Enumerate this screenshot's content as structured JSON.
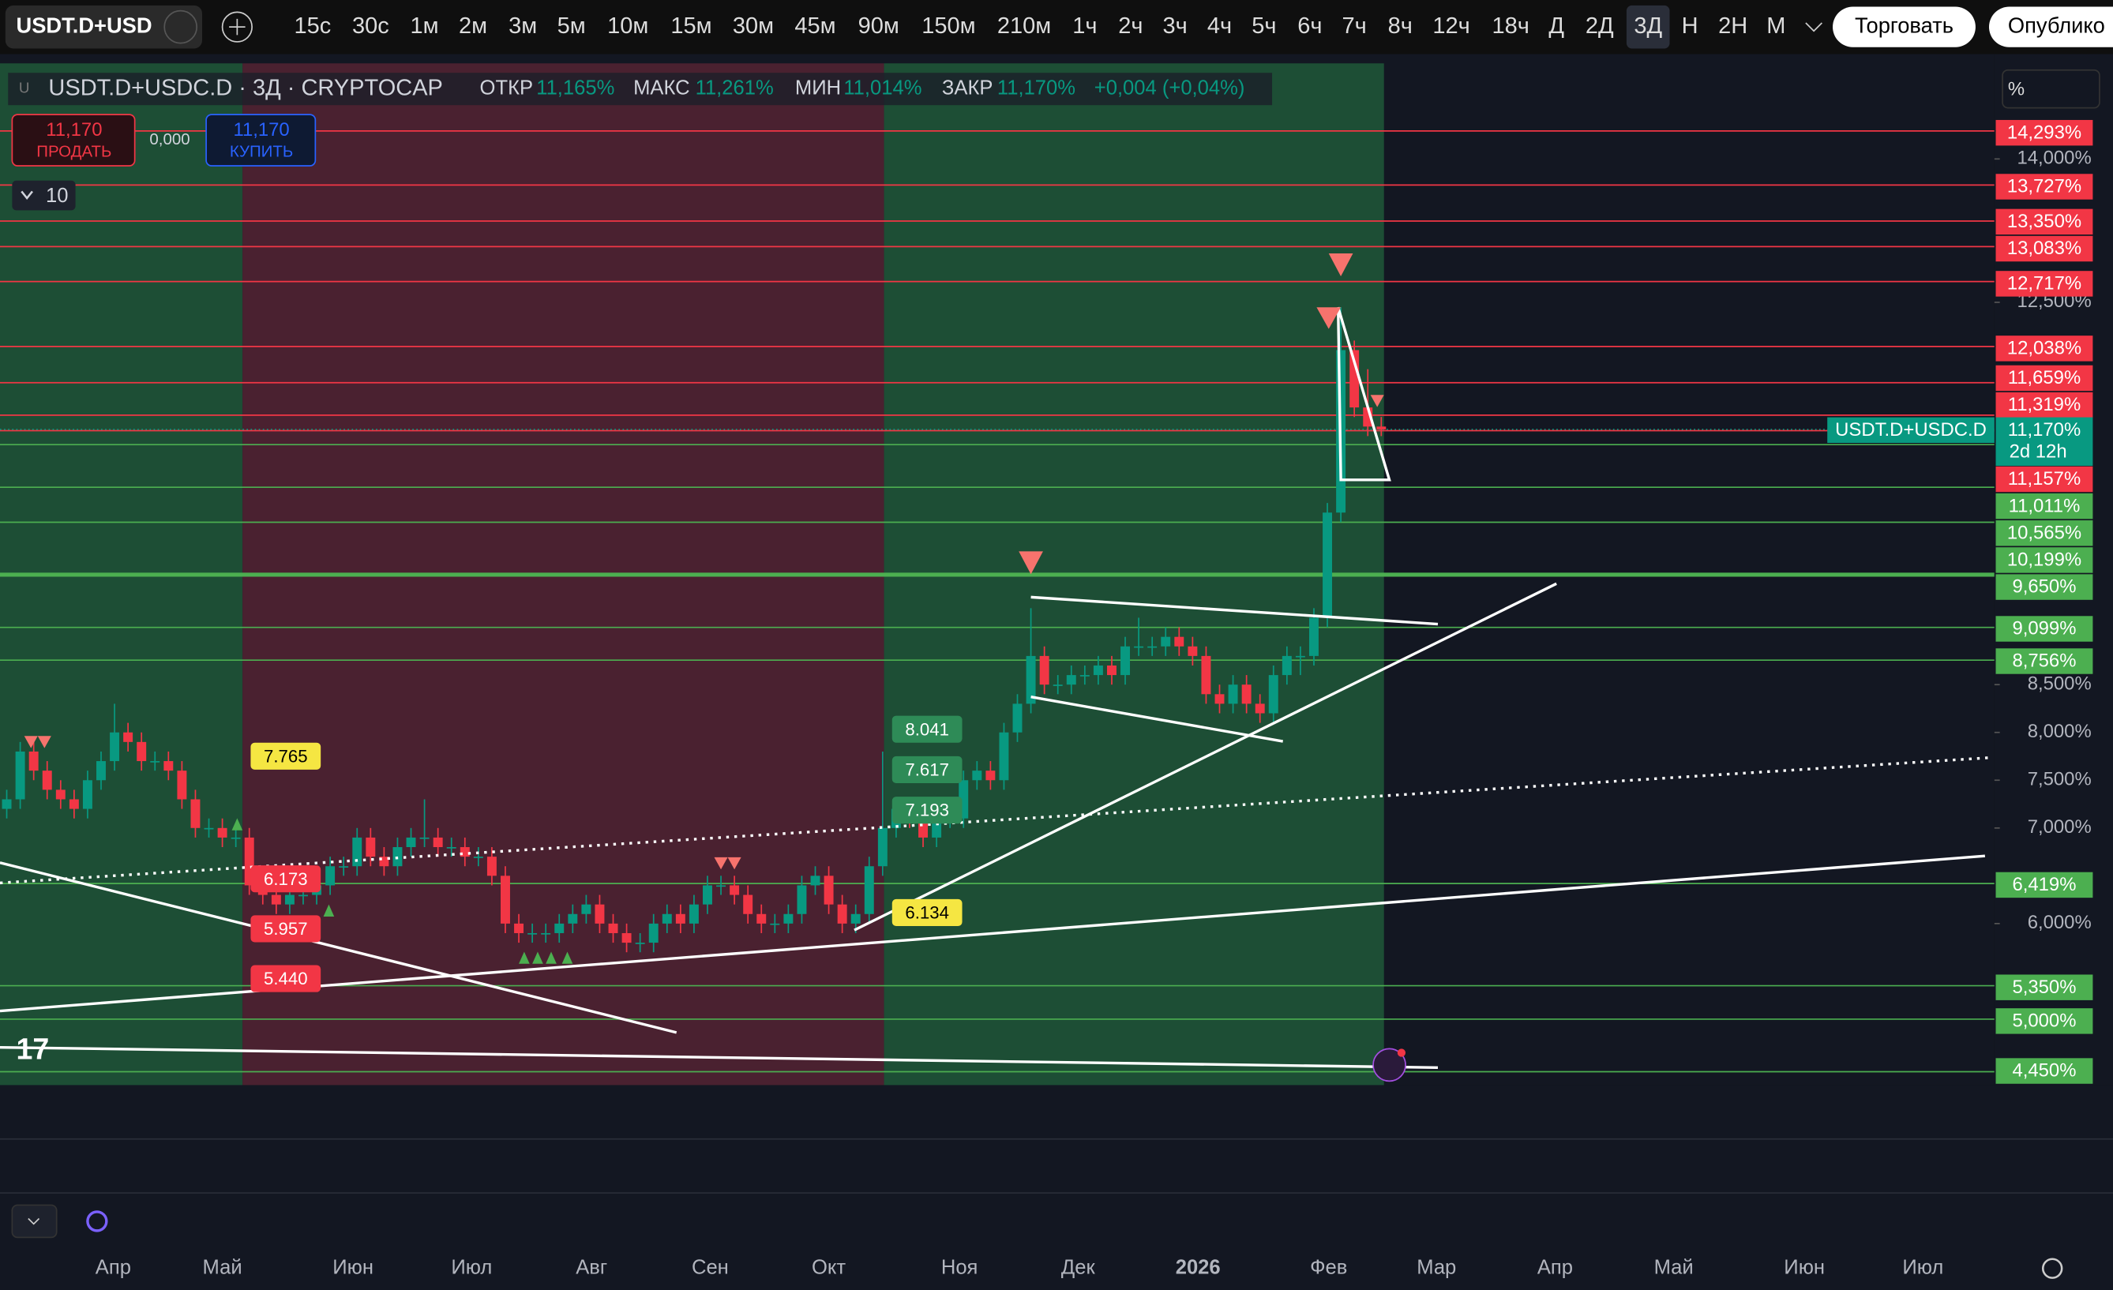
{
  "toolbar": {
    "symbol": "USDT.D+USD",
    "intervals": [
      "15с",
      "30с",
      "1м",
      "2м",
      "3м",
      "5м",
      "10м",
      "15м",
      "30м",
      "45м",
      "90м",
      "150м",
      "210м",
      "1ч",
      "2ч",
      "3ч",
      "4ч",
      "5ч",
      "6ч",
      "7ч",
      "8ч",
      "12ч",
      "18ч",
      "Д",
      "2Д",
      "3Д",
      "Н",
      "2Н",
      "М"
    ],
    "active": "3Д",
    "trade": "Торговать",
    "publish": "Опублико"
  },
  "header": {
    "title": "USDT.D+USDC.D · 3Д · CRYPTOCAP",
    "open_label": "ОТКР",
    "open": "11,165%",
    "high_label": "МАКС",
    "high": "11,261%",
    "low_label": "МИН",
    "low": "11,014%",
    "close_label": "ЗАКР",
    "close": "11,170%",
    "change": "+0,004 (+0,04%)",
    "sell_price": "11,170",
    "sell": "ПРОДАТЬ",
    "spread": "0,000",
    "buy_price": "11,170",
    "buy": "КУПИТЬ",
    "indicators": "10",
    "scale_mode": "%"
  },
  "chart": {
    "ylim": [
      4.31,
      15.0
    ],
    "yticks": [
      {
        "value": 14,
        "label": "14,000%"
      },
      {
        "value": 12.5,
        "label": "12,500%"
      },
      {
        "value": 8.5,
        "label": "8,500%"
      },
      {
        "value": 8,
        "label": "8,000%"
      },
      {
        "value": 7.5,
        "label": "7,500%"
      },
      {
        "value": 7,
        "label": "7,000%"
      },
      {
        "value": 6,
        "label": "6,000%"
      }
    ],
    "levels": [
      {
        "value": 14.293,
        "label": "14,293%",
        "color": "#f23645"
      },
      {
        "value": 13.727,
        "label": "13,727%",
        "color": "#f23645"
      },
      {
        "value": 13.35,
        "label": "13,350%",
        "color": "#f23645"
      },
      {
        "value": 13.083,
        "label": "13,083%",
        "color": "#f23645"
      },
      {
        "value": 12.717,
        "label": "12,717%",
        "color": "#f23645"
      },
      {
        "value": 12.038,
        "label": "12,038%",
        "color": "#f23645"
      },
      {
        "value": 11.659,
        "label": "11,659%",
        "color": "#f23645"
      },
      {
        "value": 11.319,
        "label": "11,319%",
        "color": "#f23645"
      },
      {
        "value": 11.157,
        "label": "11,157%",
        "color": "#f23645"
      },
      {
        "value": 11.011,
        "label": "11,011%",
        "color": "#4caf50"
      },
      {
        "value": 10.565,
        "label": "10,565%",
        "color": "#4caf50"
      },
      {
        "value": 10.199,
        "label": "10,199%",
        "color": "#4caf50"
      },
      {
        "value": 9.65,
        "label": "9,650%",
        "color": "#4caf50"
      },
      {
        "value": 9.099,
        "label": "9,099%",
        "color": "#4caf50"
      },
      {
        "value": 8.756,
        "label": "8,756%",
        "color": "#4caf50"
      },
      {
        "value": 6.419,
        "label": "6,419%",
        "color": "#4caf50"
      },
      {
        "value": 5.35,
        "label": "5,350%",
        "color": "#4caf50"
      },
      {
        "value": 5.0,
        "label": "5,000%",
        "color": "#4caf50"
      },
      {
        "value": 4.45,
        "label": "4,450%",
        "color": "#4caf50"
      }
    ],
    "current": {
      "value": 11.17,
      "label": "11,170%",
      "countdown": "2d 12h",
      "name": "USDT.D+USDC.D",
      "color": "#089981"
    },
    "up_color": "#089981",
    "down_color": "#f23645",
    "candles": [
      [
        7.2,
        7.4,
        7.1,
        7.3
      ],
      [
        7.3,
        7.9,
        7.2,
        7.8
      ],
      [
        7.8,
        7.9,
        7.5,
        7.6
      ],
      [
        7.6,
        7.7,
        7.3,
        7.4
      ],
      [
        7.4,
        7.5,
        7.2,
        7.3
      ],
      [
        7.3,
        7.4,
        7.1,
        7.2
      ],
      [
        7.2,
        7.6,
        7.1,
        7.5
      ],
      [
        7.5,
        7.8,
        7.4,
        7.7
      ],
      [
        7.7,
        8.3,
        7.6,
        8.0
      ],
      [
        8.0,
        8.1,
        7.8,
        7.9
      ],
      [
        7.9,
        8.0,
        7.6,
        7.7
      ],
      [
        7.7,
        7.8,
        7.6,
        7.7
      ],
      [
        7.7,
        7.8,
        7.5,
        7.6
      ],
      [
        7.6,
        7.7,
        7.2,
        7.3
      ],
      [
        7.3,
        7.4,
        6.9,
        7.0
      ],
      [
        7.0,
        7.1,
        6.9,
        7.0
      ],
      [
        7.0,
        7.1,
        6.8,
        6.9
      ],
      [
        6.9,
        7.0,
        6.8,
        6.9
      ],
      [
        6.9,
        7.0,
        6.3,
        6.4
      ],
      [
        6.4,
        6.5,
        6.2,
        6.3
      ],
      [
        6.3,
        6.4,
        6.1,
        6.2
      ],
      [
        6.2,
        6.4,
        6.1,
        6.3
      ],
      [
        6.3,
        6.4,
        6.2,
        6.3
      ],
      [
        6.3,
        6.5,
        6.2,
        6.4
      ],
      [
        6.4,
        6.7,
        6.3,
        6.6
      ],
      [
        6.6,
        6.7,
        6.5,
        6.6
      ],
      [
        6.6,
        7.0,
        6.5,
        6.9
      ],
      [
        6.9,
        7.0,
        6.6,
        6.7
      ],
      [
        6.7,
        6.8,
        6.5,
        6.6
      ],
      [
        6.6,
        6.9,
        6.5,
        6.8
      ],
      [
        6.8,
        7.0,
        6.7,
        6.9
      ],
      [
        6.9,
        7.3,
        6.8,
        6.9
      ],
      [
        6.9,
        7.0,
        6.7,
        6.8
      ],
      [
        6.8,
        6.9,
        6.7,
        6.8
      ],
      [
        6.8,
        6.9,
        6.6,
        6.7
      ],
      [
        6.7,
        6.8,
        6.6,
        6.7
      ],
      [
        6.7,
        6.8,
        6.4,
        6.5
      ],
      [
        6.5,
        6.6,
        5.9,
        6.0
      ],
      [
        6.0,
        6.1,
        5.8,
        5.9
      ],
      [
        5.9,
        6.0,
        5.8,
        5.9
      ],
      [
        5.9,
        6.0,
        5.8,
        5.9
      ],
      [
        5.9,
        6.1,
        5.8,
        6.0
      ],
      [
        6.0,
        6.2,
        5.9,
        6.1
      ],
      [
        6.1,
        6.3,
        6.0,
        6.2
      ],
      [
        6.2,
        6.3,
        5.9,
        6.0
      ],
      [
        6.0,
        6.1,
        5.8,
        5.9
      ],
      [
        5.9,
        6.0,
        5.7,
        5.8
      ],
      [
        5.8,
        5.9,
        5.7,
        5.8
      ],
      [
        5.8,
        6.1,
        5.7,
        6.0
      ],
      [
        6.0,
        6.2,
        5.9,
        6.1
      ],
      [
        6.1,
        6.2,
        5.9,
        6.0
      ],
      [
        6.0,
        6.3,
        5.9,
        6.2
      ],
      [
        6.2,
        6.5,
        6.1,
        6.4
      ],
      [
        6.4,
        6.5,
        6.3,
        6.4
      ],
      [
        6.4,
        6.5,
        6.2,
        6.3
      ],
      [
        6.3,
        6.4,
        6.0,
        6.1
      ],
      [
        6.1,
        6.2,
        5.9,
        6.0
      ],
      [
        6.0,
        6.1,
        5.9,
        6.0
      ],
      [
        6.0,
        6.2,
        5.9,
        6.1
      ],
      [
        6.1,
        6.5,
        6.0,
        6.4
      ],
      [
        6.4,
        6.6,
        6.3,
        6.5
      ],
      [
        6.5,
        6.6,
        6.1,
        6.2
      ],
      [
        6.2,
        6.3,
        5.9,
        6.0
      ],
      [
        6.0,
        6.2,
        5.9,
        6.1
      ],
      [
        6.1,
        6.7,
        6.0,
        6.6
      ],
      [
        6.6,
        7.8,
        6.5,
        7.0
      ],
      [
        7.0,
        7.3,
        6.9,
        7.2
      ],
      [
        7.2,
        7.3,
        7.0,
        7.1
      ],
      [
        7.1,
        7.2,
        6.8,
        6.9
      ],
      [
        6.9,
        7.2,
        6.8,
        7.1
      ],
      [
        7.1,
        7.2,
        7.0,
        7.1
      ],
      [
        7.1,
        7.6,
        7.0,
        7.5
      ],
      [
        7.5,
        7.7,
        7.4,
        7.6
      ],
      [
        7.6,
        7.7,
        7.4,
        7.5
      ],
      [
        7.5,
        8.1,
        7.4,
        8.0
      ],
      [
        8.0,
        8.4,
        7.9,
        8.3
      ],
      [
        8.3,
        9.3,
        8.2,
        8.8
      ],
      [
        8.8,
        8.9,
        8.4,
        8.5
      ],
      [
        8.5,
        8.6,
        8.4,
        8.5
      ],
      [
        8.5,
        8.7,
        8.4,
        8.6
      ],
      [
        8.6,
        8.7,
        8.5,
        8.6
      ],
      [
        8.6,
        8.8,
        8.5,
        8.7
      ],
      [
        8.7,
        8.8,
        8.5,
        8.6
      ],
      [
        8.6,
        9.0,
        8.5,
        8.9
      ],
      [
        8.9,
        9.2,
        8.8,
        8.9
      ],
      [
        8.9,
        9.0,
        8.8,
        8.9
      ],
      [
        8.9,
        9.1,
        8.8,
        9.0
      ],
      [
        9.0,
        9.1,
        8.8,
        8.9
      ],
      [
        8.9,
        9.0,
        8.7,
        8.8
      ],
      [
        8.8,
        8.9,
        8.3,
        8.4
      ],
      [
        8.4,
        8.5,
        8.2,
        8.3
      ],
      [
        8.3,
        8.6,
        8.2,
        8.5
      ],
      [
        8.5,
        8.6,
        8.2,
        8.3
      ],
      [
        8.3,
        8.4,
        8.1,
        8.2
      ],
      [
        8.2,
        8.7,
        8.1,
        8.6
      ],
      [
        8.6,
        8.9,
        8.5,
        8.8
      ],
      [
        8.8,
        8.9,
        8.6,
        8.8
      ],
      [
        8.8,
        9.3,
        8.7,
        9.2
      ],
      [
        9.2,
        10.4,
        9.1,
        10.3
      ],
      [
        10.3,
        12.45,
        10.2,
        12.0
      ],
      [
        12.0,
        12.1,
        11.3,
        11.4
      ],
      [
        11.4,
        11.8,
        11.1,
        11.2
      ],
      [
        11.2,
        11.3,
        11.1,
        11.17
      ]
    ],
    "annotations": [
      "7.765",
      "6.173",
      "5.957",
      "5.440",
      "8.041",
      "7.617",
      "7.193",
      "6.134"
    ],
    "months": [
      "Апр",
      "Май",
      "Июн",
      "Июл",
      "Авг",
      "Сен",
      "Окт",
      "Ноя",
      "Дек",
      "2026",
      "Фев",
      "Мар",
      "Апр",
      "Май",
      "Июн",
      "Июл"
    ]
  }
}
